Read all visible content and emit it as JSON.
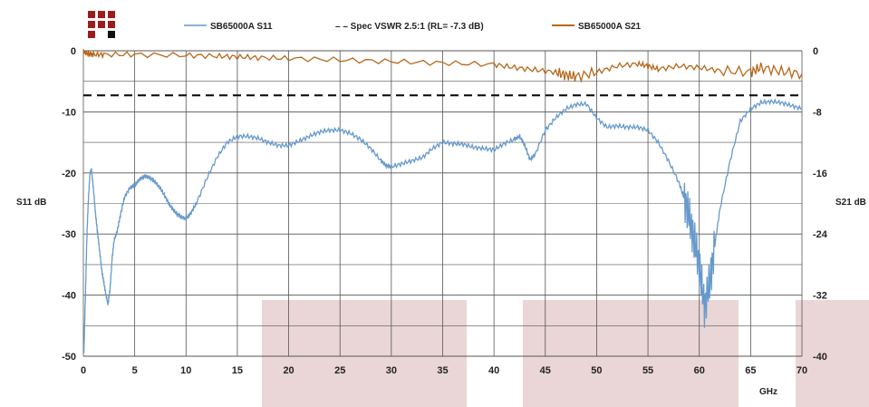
{
  "chart_data": {
    "type": "line",
    "title": "",
    "xlabel": "GHz",
    "y_left_label": "S11 dB",
    "y_right_label": "S21 dB",
    "xlim": [
      0,
      70
    ],
    "ylim_left": [
      -50,
      0
    ],
    "ylim_right": [
      -40,
      0
    ],
    "x_ticks": [
      0,
      5,
      10,
      15,
      20,
      25,
      30,
      35,
      40,
      45,
      50,
      55,
      60,
      65,
      70
    ],
    "y_left_ticks_labeled": [
      0,
      -10,
      -20,
      -30,
      -40,
      -50
    ],
    "y_right_ticks_labeled": [
      0,
      -8,
      -16,
      -24,
      -32,
      -40
    ],
    "grid": true,
    "legend_position": "top",
    "colors": {
      "s11": "#6699cc",
      "spec": "#111111",
      "s21": "#b8671a",
      "grid": "#555555",
      "logo_red": "#9b1c1c",
      "logo_black": "#111111",
      "pink_band": "#ead6d6"
    },
    "series": [
      {
        "name": "SB65000A  S11",
        "axis": "left",
        "style": "solid",
        "x": [
          0.05,
          0.2,
          0.35,
          0.5,
          0.65,
          0.8,
          1.0,
          1.2,
          1.4,
          1.6,
          1.8,
          2.0,
          2.2,
          2.4,
          2.6,
          2.8,
          3.0,
          3.3,
          3.6,
          4.0,
          4.5,
          5.0,
          5.5,
          6.0,
          6.5,
          7.0,
          7.5,
          8.0,
          8.5,
          9.0,
          9.5,
          10.0,
          10.5,
          11.0,
          12.0,
          13.0,
          14.0,
          15.0,
          16.0,
          17.0,
          18.0,
          19.0,
          20.0,
          21.0,
          22.0,
          23.0,
          24.0,
          25.0,
          26.0,
          27.0,
          28.0,
          29.0,
          29.5,
          30.0,
          31.0,
          32.0,
          33.0,
          34.0,
          35.0,
          36.0,
          37.0,
          38.0,
          39.0,
          40.0,
          41.0,
          42.0,
          42.5,
          43.0,
          43.5,
          44.0,
          45.0,
          46.0,
          47.0,
          48.0,
          49.0,
          50.0,
          51.0,
          52.0,
          53.0,
          54.0,
          55.0,
          56.0,
          57.0,
          58.0,
          58.5,
          59.0,
          59.5,
          60.0,
          60.5,
          61.0,
          61.5,
          62.0,
          63.0,
          64.0,
          65.0,
          66.0,
          67.0,
          68.0,
          69.0,
          70.0
        ],
        "values": [
          -49.5,
          -40,
          -30,
          -24,
          -20,
          -19.5,
          -23,
          -27,
          -30,
          -33,
          -36,
          -38,
          -40,
          -41.5,
          -39,
          -34,
          -31,
          -29.5,
          -27,
          -24,
          -22.5,
          -22,
          -21,
          -20.5,
          -20.8,
          -21.5,
          -22.5,
          -24,
          -25.5,
          -26.5,
          -27.2,
          -27.5,
          -26.5,
          -25,
          -21,
          -17.5,
          -15,
          -14,
          -14,
          -14.3,
          -15,
          -15.5,
          -15.5,
          -14.8,
          -14,
          -13.3,
          -13,
          -13,
          -13.5,
          -14.5,
          -16,
          -18,
          -18.8,
          -19,
          -18.5,
          -18,
          -17.5,
          -16,
          -15,
          -15.2,
          -15.3,
          -15.8,
          -16,
          -16.2,
          -15.2,
          -14.5,
          -14,
          -15.5,
          -17.8,
          -17,
          -13,
          -11,
          -9.5,
          -8.8,
          -8.7,
          -11,
          -12.5,
          -12.3,
          -12.5,
          -12.5,
          -13,
          -15,
          -18,
          -21.5,
          -24,
          -27,
          -31,
          -35,
          -42,
          -38,
          -32,
          -26,
          -18,
          -11.5,
          -9.5,
          -8.5,
          -8.3,
          -8.5,
          -9,
          -9.5
        ]
      },
      {
        "name": "– – Spec VSWR 2.5:1 (RL= -7.3 dB)",
        "axis": "left",
        "style": "dashed",
        "x": [
          0,
          70
        ],
        "values": [
          -7.3,
          -7.3
        ]
      },
      {
        "name": "SB65000A  S21",
        "axis": "right",
        "style": "solid",
        "x": [
          0,
          0.5,
          1,
          2,
          5,
          10,
          13,
          15,
          17,
          20,
          25,
          30,
          35,
          40,
          42,
          44,
          46,
          47,
          48,
          50,
          52,
          54,
          55,
          56,
          58,
          60,
          62,
          65,
          66,
          68,
          70
        ],
        "values": [
          -0.1,
          -0.4,
          -0.5,
          -0.5,
          -0.5,
          -0.6,
          -0.7,
          -0.8,
          -0.9,
          -1.0,
          -1.2,
          -1.4,
          -1.6,
          -1.8,
          -2.2,
          -2.5,
          -2.8,
          -3.2,
          -3.4,
          -2.8,
          -2.0,
          -1.7,
          -2.0,
          -2.4,
          -2.0,
          -2.2,
          -2.6,
          -2.8,
          -2.2,
          -2.7,
          -3.0
        ]
      }
    ]
  }
}
